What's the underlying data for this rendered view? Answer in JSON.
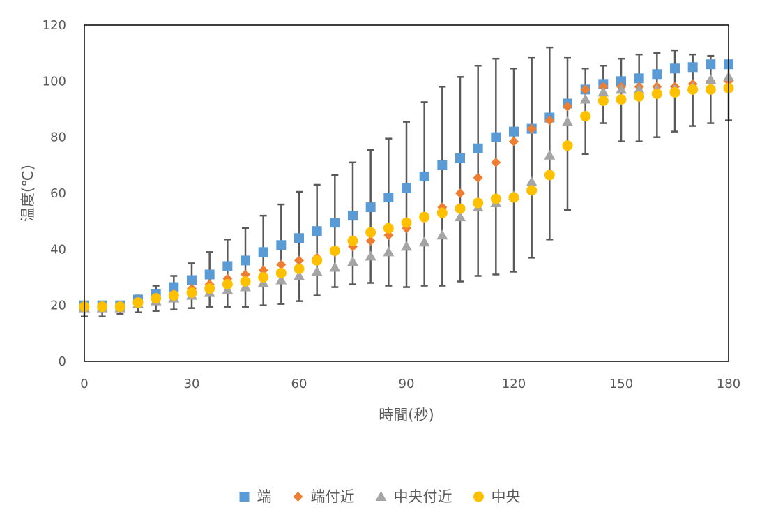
{
  "chart_data": {
    "type": "scatter",
    "xlabel": "時間(秒)",
    "ylabel": "温度(℃)",
    "xlim": [
      0,
      180
    ],
    "ylim": [
      0,
      120
    ],
    "x_ticks": [
      0,
      30,
      60,
      90,
      120,
      150,
      180
    ],
    "y_ticks": [
      0,
      20,
      40,
      60,
      80,
      100,
      120
    ],
    "x_tick_labels": [
      "0",
      "30",
      "60",
      "90",
      "120",
      "150",
      "180"
    ],
    "y_tick_labels": [
      "0",
      "20",
      "40",
      "60",
      "80",
      "100",
      "120"
    ],
    "grid": false,
    "legend_position": "bottom",
    "x": [
      0,
      5,
      10,
      15,
      20,
      25,
      30,
      35,
      40,
      45,
      50,
      55,
      60,
      65,
      70,
      75,
      80,
      85,
      90,
      95,
      100,
      105,
      110,
      115,
      120,
      125,
      130,
      135,
      140,
      145,
      150,
      155,
      160,
      165,
      170,
      175,
      180
    ],
    "series": [
      {
        "name": "端",
        "marker": "square",
        "color": "#5B9BD5",
        "values": [
          20,
          20,
          20,
          22,
          24,
          26.5,
          29,
          31,
          34,
          36,
          39,
          41.5,
          44,
          46.5,
          49.5,
          52,
          55,
          58.5,
          62,
          66,
          70,
          72.5,
          76,
          80,
          82,
          83,
          87,
          92,
          97,
          99,
          100,
          101,
          102.5,
          104.5,
          105,
          106,
          106
        ]
      },
      {
        "name": "端付近",
        "marker": "diamond",
        "color": "#ED7D31",
        "values": [
          19.5,
          19.5,
          19.5,
          21,
          22.5,
          24,
          26,
          27.5,
          29.5,
          31,
          32.5,
          34.5,
          36,
          37,
          39,
          41,
          43,
          45,
          47.5,
          51,
          55,
          60,
          65.5,
          71,
          78.5,
          83,
          86,
          91,
          97,
          98,
          98,
          98,
          98,
          98,
          99,
          100,
          100
        ]
      },
      {
        "name": "中央付近",
        "marker": "triangle",
        "color": "#A5A5A5",
        "values": [
          19,
          19,
          19,
          20.5,
          21.5,
          22.5,
          23.5,
          24.5,
          25.5,
          26.5,
          28,
          29,
          30.5,
          32,
          33.5,
          35.5,
          37.5,
          39,
          41,
          42.5,
          45,
          51.5,
          55,
          56.5,
          59,
          64,
          73.5,
          85.5,
          93.5,
          96,
          97,
          97,
          97,
          97,
          98,
          100.5,
          101.5
        ]
      },
      {
        "name": "中央",
        "marker": "circle",
        "color": "#FFC000",
        "values": [
          19.5,
          19.5,
          19.5,
          21,
          22.5,
          23.5,
          24.5,
          26,
          27.5,
          28.5,
          30,
          31.5,
          33,
          36,
          39.5,
          43,
          46,
          47.5,
          49.5,
          51.5,
          53,
          54.5,
          56.5,
          58,
          58.5,
          61,
          66.5,
          77,
          87.5,
          93,
          93.5,
          94.5,
          95.5,
          96,
          97,
          97,
          97.5
        ]
      }
    ],
    "error_bars": {
      "color": "#595959",
      "low": [
        16,
        16,
        17,
        17.5,
        18,
        18.5,
        19,
        19.5,
        19.5,
        19.5,
        20,
        20.5,
        21.5,
        23.5,
        26.5,
        27.5,
        28,
        27,
        26.5,
        27,
        27,
        28.5,
        30.5,
        31,
        32,
        37,
        43.5,
        54,
        74,
        85,
        78.5,
        78.5,
        80,
        82,
        84,
        85,
        86
      ],
      "high": [
        20.5,
        21,
        21,
        23.5,
        27,
        30.5,
        35,
        39,
        43.5,
        47.5,
        52,
        56,
        60.5,
        63,
        66.5,
        71,
        75.5,
        79.5,
        85.5,
        92.5,
        98,
        101.5,
        105.5,
        108,
        104.5,
        108.5,
        112,
        108.5,
        104.5,
        105.5,
        108,
        109.5,
        110,
        111,
        109.5,
        109,
        106
      ]
    }
  }
}
